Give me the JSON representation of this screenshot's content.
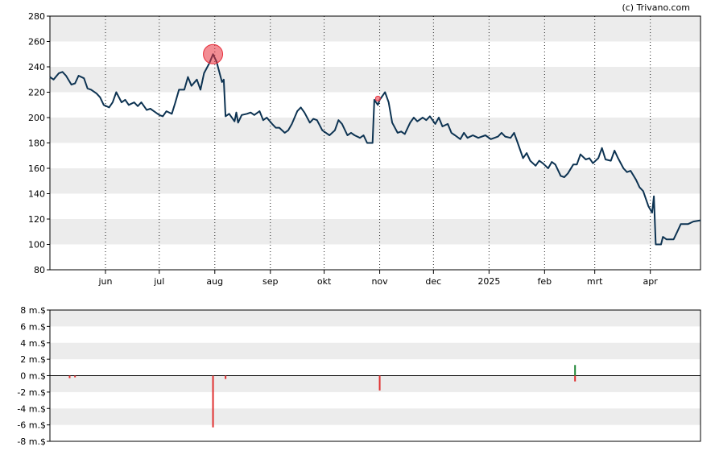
{
  "credit": "(c) Trivano.com",
  "chart_data": [
    {
      "type": "line",
      "title": "",
      "ylim": [
        80,
        280
      ],
      "y_ticks": [
        280,
        260,
        240,
        220,
        200,
        180,
        160,
        140,
        120,
        100,
        80
      ],
      "x_ticks": [
        {
          "label": "jun",
          "date": "2024-06-01"
        },
        {
          "label": "jul",
          "date": "2024-07-01"
        },
        {
          "label": "aug",
          "date": "2024-08-01"
        },
        {
          "label": "sep",
          "date": "2024-09-01"
        },
        {
          "label": "okt",
          "date": "2024-10-01"
        },
        {
          "label": "nov",
          "date": "2024-11-01"
        },
        {
          "label": "dec",
          "date": "2024-12-01"
        },
        {
          "label": "2025",
          "date": "2025-01-01"
        },
        {
          "label": "feb",
          "date": "2025-02-01"
        },
        {
          "label": "mrt",
          "date": "2025-03-01"
        },
        {
          "label": "apr",
          "date": "2025-04-01"
        }
      ],
      "xlim": [
        "2024-05-01",
        "2025-04-29"
      ],
      "series": [
        {
          "color": "#0d3352",
          "points": [
            [
              "2024-05-01",
              232
            ],
            [
              "2024-05-03",
              230
            ],
            [
              "2024-05-06",
              235
            ],
            [
              "2024-05-08",
              236
            ],
            [
              "2024-05-10",
              233
            ],
            [
              "2024-05-13",
              226
            ],
            [
              "2024-05-15",
              227
            ],
            [
              "2024-05-17",
              233
            ],
            [
              "2024-05-20",
              231
            ],
            [
              "2024-05-22",
              223
            ],
            [
              "2024-05-24",
              222
            ],
            [
              "2024-05-27",
              219
            ],
            [
              "2024-05-29",
              216
            ],
            [
              "2024-05-31",
              210
            ],
            [
              "2024-06-03",
              208
            ],
            [
              "2024-06-05",
              212
            ],
            [
              "2024-06-07",
              220
            ],
            [
              "2024-06-10",
              212
            ],
            [
              "2024-06-12",
              214
            ],
            [
              "2024-06-14",
              210
            ],
            [
              "2024-06-17",
              212
            ],
            [
              "2024-06-19",
              209
            ],
            [
              "2024-06-21",
              212
            ],
            [
              "2024-06-24",
              206
            ],
            [
              "2024-06-26",
              207
            ],
            [
              "2024-06-28",
              205
            ],
            [
              "2024-07-01",
              202
            ],
            [
              "2024-07-03",
              201
            ],
            [
              "2024-07-05",
              205
            ],
            [
              "2024-07-08",
              203
            ],
            [
              "2024-07-10",
              212
            ],
            [
              "2024-07-12",
              222
            ],
            [
              "2024-07-15",
              222
            ],
            [
              "2024-07-17",
              232
            ],
            [
              "2024-07-19",
              225
            ],
            [
              "2024-07-22",
              230
            ],
            [
              "2024-07-24",
              222
            ],
            [
              "2024-07-26",
              235
            ],
            [
              "2024-07-29",
              243
            ],
            [
              "2024-07-31",
              250
            ],
            [
              "2024-08-02",
              244
            ],
            [
              "2024-08-05",
              228
            ],
            [
              "2024-08-06",
              230
            ],
            [
              "2024-08-07",
              201
            ],
            [
              "2024-08-09",
              203
            ],
            [
              "2024-08-12",
              197
            ],
            [
              "2024-08-13",
              204
            ],
            [
              "2024-08-14",
              196
            ],
            [
              "2024-08-16",
              202
            ],
            [
              "2024-08-19",
              203
            ],
            [
              "2024-08-21",
              204
            ],
            [
              "2024-08-23",
              202
            ],
            [
              "2024-08-26",
              205
            ],
            [
              "2024-08-28",
              198
            ],
            [
              "2024-08-30",
              200
            ],
            [
              "2024-09-02",
              195
            ],
            [
              "2024-09-04",
              192
            ],
            [
              "2024-09-06",
              192
            ],
            [
              "2024-09-09",
              188
            ],
            [
              "2024-09-11",
              190
            ],
            [
              "2024-09-13",
              195
            ],
            [
              "2024-09-16",
              205
            ],
            [
              "2024-09-18",
              208
            ],
            [
              "2024-09-20",
              204
            ],
            [
              "2024-09-23",
              196
            ],
            [
              "2024-09-25",
              199
            ],
            [
              "2024-09-27",
              198
            ],
            [
              "2024-09-30",
              190
            ],
            [
              "2024-10-02",
              188
            ],
            [
              "2024-10-04",
              186
            ],
            [
              "2024-10-07",
              190
            ],
            [
              "2024-10-09",
              198
            ],
            [
              "2024-10-11",
              195
            ],
            [
              "2024-10-14",
              186
            ],
            [
              "2024-10-16",
              188
            ],
            [
              "2024-10-18",
              186
            ],
            [
              "2024-10-21",
              184
            ],
            [
              "2024-10-23",
              186
            ],
            [
              "2024-10-25",
              180
            ],
            [
              "2024-10-28",
              180
            ],
            [
              "2024-10-29",
              214
            ],
            [
              "2024-10-31",
              210
            ],
            [
              "2024-11-01",
              214
            ],
            [
              "2024-11-04",
              220
            ],
            [
              "2024-11-06",
              212
            ],
            [
              "2024-11-08",
              196
            ],
            [
              "2024-11-11",
              188
            ],
            [
              "2024-11-13",
              189
            ],
            [
              "2024-11-15",
              187
            ],
            [
              "2024-11-18",
              196
            ],
            [
              "2024-11-20",
              200
            ],
            [
              "2024-11-22",
              197
            ],
            [
              "2024-11-25",
              200
            ],
            [
              "2024-11-27",
              198
            ],
            [
              "2024-11-29",
              201
            ],
            [
              "2024-12-02",
              195
            ],
            [
              "2024-12-04",
              200
            ],
            [
              "2024-12-06",
              193
            ],
            [
              "2024-12-09",
              195
            ],
            [
              "2024-12-11",
              188
            ],
            [
              "2024-12-13",
              186
            ],
            [
              "2024-12-16",
              183
            ],
            [
              "2024-12-18",
              188
            ],
            [
              "2024-12-20",
              184
            ],
            [
              "2024-12-23",
              186
            ],
            [
              "2024-12-26",
              184
            ],
            [
              "2024-12-30",
              186
            ],
            [
              "2025-01-02",
              183
            ],
            [
              "2025-01-06",
              185
            ],
            [
              "2025-01-08",
              188
            ],
            [
              "2025-01-10",
              185
            ],
            [
              "2025-01-13",
              184
            ],
            [
              "2025-01-15",
              188
            ],
            [
              "2025-01-17",
              180
            ],
            [
              "2025-01-20",
              168
            ],
            [
              "2025-01-22",
              172
            ],
            [
              "2025-01-24",
              166
            ],
            [
              "2025-01-27",
              162
            ],
            [
              "2025-01-29",
              166
            ],
            [
              "2025-01-31",
              164
            ],
            [
              "2025-02-03",
              160
            ],
            [
              "2025-02-05",
              165
            ],
            [
              "2025-02-07",
              163
            ],
            [
              "2025-02-10",
              154
            ],
            [
              "2025-02-12",
              153
            ],
            [
              "2025-02-14",
              156
            ],
            [
              "2025-02-17",
              163
            ],
            [
              "2025-02-19",
              163
            ],
            [
              "2025-02-21",
              171
            ],
            [
              "2025-02-24",
              167
            ],
            [
              "2025-02-26",
              168
            ],
            [
              "2025-02-28",
              164
            ],
            [
              "2025-03-03",
              168
            ],
            [
              "2025-03-05",
              176
            ],
            [
              "2025-03-07",
              167
            ],
            [
              "2025-03-10",
              166
            ],
            [
              "2025-03-12",
              174
            ],
            [
              "2025-03-14",
              168
            ],
            [
              "2025-03-17",
              160
            ],
            [
              "2025-03-19",
              157
            ],
            [
              "2025-03-21",
              158
            ],
            [
              "2025-03-24",
              151
            ],
            [
              "2025-03-26",
              145
            ],
            [
              "2025-03-28",
              142
            ],
            [
              "2025-03-31",
              130
            ],
            [
              "2025-04-02",
              125
            ],
            [
              "2025-04-03",
              138
            ],
            [
              "2025-04-04",
              100
            ],
            [
              "2025-04-07",
              100
            ],
            [
              "2025-04-08",
              106
            ],
            [
              "2025-04-10",
              104
            ],
            [
              "2025-04-14",
              104
            ],
            [
              "2025-04-16",
              110
            ],
            [
              "2025-04-18",
              116
            ],
            [
              "2025-04-22",
              116
            ],
            [
              "2025-04-25",
              118
            ],
            [
              "2025-04-29",
              119
            ]
          ]
        }
      ],
      "markers": [
        {
          "date": "2024-07-31",
          "value": 250,
          "size": "large",
          "color": "#e8303d"
        },
        {
          "date": "2024-10-31",
          "value": 215,
          "size": "small",
          "color": "#e8303d"
        }
      ],
      "grid": "horizontal bands, vertical dotted month lines"
    },
    {
      "type": "bar",
      "title": "",
      "ylim": [
        -8,
        8
      ],
      "y_ticks": [
        "8 m.$",
        "6 m.$",
        "4 m.$",
        "2 m.$",
        "0 m.$",
        "-2 m.$",
        "-4 m.$",
        "-6 m.$",
        "-8 m.$"
      ],
      "y_tick_values": [
        8,
        6,
        4,
        2,
        0,
        -2,
        -4,
        -6,
        -8
      ],
      "bars": [
        {
          "date": "2024-05-12",
          "value": -0.3,
          "color": "#e03030"
        },
        {
          "date": "2024-05-15",
          "value": -0.2,
          "color": "#e03030"
        },
        {
          "date": "2024-07-31",
          "value": -6.3,
          "color": "#e03030"
        },
        {
          "date": "2024-08-07",
          "value": -0.4,
          "color": "#e03030"
        },
        {
          "date": "2024-11-01",
          "value": -1.8,
          "color": "#e03030"
        },
        {
          "date": "2025-02-18",
          "value": 1.3,
          "color": "#22883a"
        },
        {
          "date": "2025-02-18",
          "value": -0.7,
          "color": "#e03030"
        }
      ]
    }
  ]
}
